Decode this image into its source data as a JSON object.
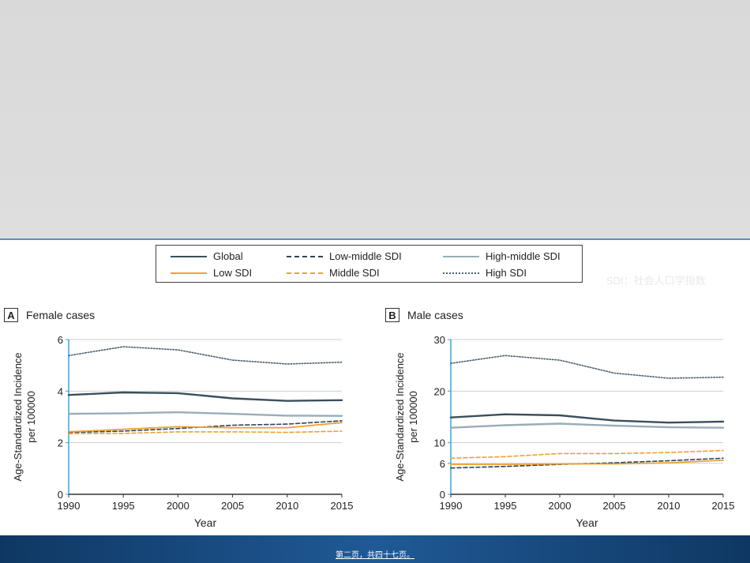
{
  "legend": {
    "global": "Global",
    "low_middle": "Low-middle SDI",
    "high_middle": "High-middle SDI",
    "low": "Low SDI",
    "middle": "Middle SDI",
    "high": "High SDI"
  },
  "sdi_note": "SDI：社会人口学指数",
  "footer": "第二页，共四十七页。",
  "colors": {
    "global": "#3a4f5c",
    "low_middle": "#2f4553",
    "high_middle": "#98adb8",
    "low": "#f0a030",
    "middle": "#f0a030",
    "high": "#4a6070",
    "axis_accent": "#34a7dd"
  },
  "chart_data": [
    {
      "type": "line",
      "panel": "A",
      "title": "Female cases",
      "xlabel": "Year",
      "ylabel": "Age-Standardized Incidence per 100000",
      "x": [
        1990,
        1995,
        2000,
        2005,
        2010,
        2015
      ],
      "xticks": [
        "1990",
        "1995",
        "2000",
        "2005",
        "2010",
        "2015"
      ],
      "yticks": [
        0,
        2,
        4,
        6
      ],
      "ytick_labels": [
        "0",
        "2",
        "4",
        "6"
      ],
      "ylim": [
        0,
        6
      ],
      "series": [
        {
          "key": "high",
          "name": "High SDI",
          "values": [
            5.38,
            5.72,
            5.6,
            5.2,
            5.05,
            5.12
          ]
        },
        {
          "key": "global",
          "name": "Global",
          "values": [
            3.85,
            3.95,
            3.92,
            3.72,
            3.62,
            3.65
          ]
        },
        {
          "key": "high_middle",
          "name": "High-middle SDI",
          "values": [
            3.12,
            3.14,
            3.18,
            3.12,
            3.05,
            3.04
          ]
        },
        {
          "key": "low_middle",
          "name": "Low-middle SDI",
          "values": [
            2.4,
            2.45,
            2.55,
            2.68,
            2.72,
            2.85
          ]
        },
        {
          "key": "low",
          "name": "Low SDI",
          "values": [
            2.42,
            2.52,
            2.62,
            2.58,
            2.58,
            2.78
          ]
        },
        {
          "key": "middle",
          "name": "Middle SDI",
          "values": [
            2.35,
            2.36,
            2.42,
            2.42,
            2.4,
            2.45
          ]
        }
      ]
    },
    {
      "type": "line",
      "panel": "B",
      "title": "Male cases",
      "xlabel": "Year",
      "ylabel": "Age-Standardized Incidence per 100000",
      "x": [
        1990,
        1995,
        2000,
        2005,
        2010,
        2015
      ],
      "xticks": [
        "1990",
        "1995",
        "2000",
        "2005",
        "2010",
        "2015"
      ],
      "yticks": [
        0,
        6,
        10,
        20,
        30
      ],
      "ytick_labels": [
        "0",
        "6",
        "10",
        "20",
        "30"
      ],
      "ylim": [
        0,
        30
      ],
      "series": [
        {
          "key": "high",
          "name": "High SDI",
          "values": [
            25.4,
            26.9,
            26.0,
            23.5,
            22.5,
            22.7
          ]
        },
        {
          "key": "global",
          "name": "Global",
          "values": [
            14.9,
            15.5,
            15.3,
            14.3,
            13.9,
            14.1
          ]
        },
        {
          "key": "high_middle",
          "name": "High-middle SDI",
          "values": [
            12.9,
            13.4,
            13.7,
            13.3,
            13.0,
            12.9
          ]
        },
        {
          "key": "middle",
          "name": "Middle SDI",
          "values": [
            7.0,
            7.3,
            7.9,
            7.9,
            8.1,
            8.5
          ]
        },
        {
          "key": "low_middle",
          "name": "Low-middle SDI",
          "values": [
            5.1,
            5.4,
            5.8,
            6.1,
            6.5,
            7.0
          ]
        },
        {
          "key": "low",
          "name": "Low SDI",
          "values": [
            5.8,
            5.8,
            5.9,
            5.9,
            6.1,
            6.6
          ]
        }
      ]
    }
  ]
}
